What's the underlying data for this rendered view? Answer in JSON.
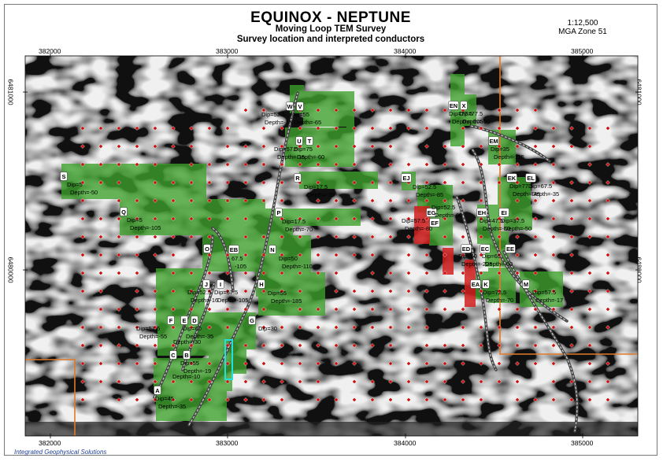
{
  "title": "EQUINOX - NEPTUNE",
  "subtitle1": "Moving Loop TEM Survey",
  "subtitle2": "Survey location and interpreted conductors",
  "scale_text": "1:12,500",
  "zone_text": "MGA Zone 51",
  "credit": "Integrated Geophysical Solutions",
  "easting_labels": [
    "382000",
    "383000",
    "384000",
    "385000"
  ],
  "northing_labels": [
    "6481000",
    "6480000"
  ],
  "colors": {
    "loop_green": "#3c9e2a",
    "conductor_red": "#d42020",
    "boundary_orange": "#e07a2a",
    "station_red": "#cc1010",
    "highlight_cyan": "#20e0e0"
  },
  "conductors": [
    {
      "id": "A",
      "dip": "Dip=45",
      "depth": "Depth=-35"
    },
    {
      "id": "B",
      "dip": "Dip=55",
      "depth": "Depth=-19"
    },
    {
      "id": "C",
      "dip": "",
      "depth": "Depth=-10"
    },
    {
      "id": "D",
      "dip": "Dip=60",
      "depth": "Depth=-35"
    },
    {
      "id": "E",
      "dip": "",
      "depth": "Depth=-30"
    },
    {
      "id": "F",
      "dip": "Dip=57.5",
      "depth": "Depth=-55"
    },
    {
      "id": "G",
      "dip": "Dip=30",
      "depth": ""
    },
    {
      "id": "H",
      "dip": "Dip=55",
      "depth": "Depth=-185"
    },
    {
      "id": "I",
      "dip": "Dip=67.5",
      "depth": "Depth=-105"
    },
    {
      "id": "J",
      "dip": "Dip=52.5",
      "depth": "Depth=-16"
    },
    {
      "id": "N",
      "dip": "Dip=50",
      "depth": "Depth=-110"
    },
    {
      "id": "O",
      "dip": "",
      "depth": ""
    },
    {
      "id": "EB",
      "dip": "67.5",
      "depth": "-105"
    },
    {
      "id": "P",
      "dip": "Dip=17.5",
      "depth": "Depth=-70"
    },
    {
      "id": "Q",
      "dip": "Dip=5",
      "depth": "Depth=-105"
    },
    {
      "id": "R",
      "dip": "Dip=17.5",
      "depth": "Depth=-35"
    },
    {
      "id": "S",
      "dip": "Dip=5",
      "depth": "Depth=-50"
    },
    {
      "id": "T",
      "dip": "Dip=75",
      "depth": "Depth=-60"
    },
    {
      "id": "U",
      "dip": "Dip=57.5",
      "depth": "Depth=-15"
    },
    {
      "id": "V",
      "dip": "Dip=55",
      "depth": "Depth=-65"
    },
    {
      "id": "W",
      "dip": "Dip=52.5",
      "depth": "Depth=-15"
    },
    {
      "id": "EJ",
      "dip": "Dip=52.5",
      "depth": "Depth=-85"
    },
    {
      "id": "EG",
      "dip": "Dip=52.5",
      "depth": "Depth=-60"
    },
    {
      "id": "EF",
      "dip": "Dip=57.5",
      "depth": "Depth=-80"
    },
    {
      "id": "ED",
      "dip": "Dip=60",
      "depth": "Depth=-225"
    },
    {
      "id": "EA",
      "dip": "",
      "depth": ""
    },
    {
      "id": "K",
      "dip": "Dip=72.5",
      "depth": "Depth=-70"
    },
    {
      "id": "EC",
      "dip": "Dip=65",
      "depth": "Depth=-50"
    },
    {
      "id": "EE",
      "dip": "",
      "depth": ""
    },
    {
      "id": "EH",
      "dip": "Dip=47.5",
      "depth": "Depth=-50"
    },
    {
      "id": "EI",
      "dip": "Dip=37.5",
      "depth": "Depth=-50"
    },
    {
      "id": "EK",
      "dip": "Dip=77.5",
      "depth": "Depth=-45"
    },
    {
      "id": "EL",
      "dip": "Dip=67.5",
      "depth": "Depth=-35"
    },
    {
      "id": "EM",
      "dip": "Dip=35",
      "depth": "Depth=-115"
    },
    {
      "id": "EN",
      "dip": "Dip=77.5",
      "depth": "Depth=-105"
    },
    {
      "id": "X",
      "dip": "Dip=77.5",
      "depth": "Depth=-60"
    },
    {
      "id": "M",
      "dip": "Dip=57.5",
      "depth": "Depth=-17"
    }
  ]
}
